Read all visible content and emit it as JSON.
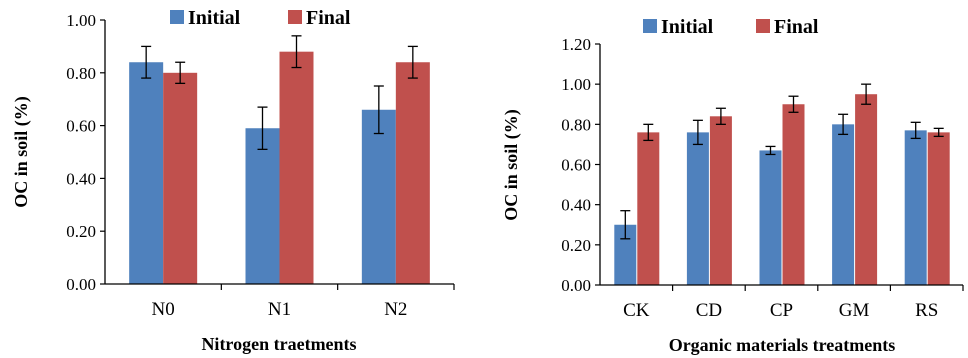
{
  "chart_data": [
    {
      "type": "bar",
      "categories": [
        "N0",
        "N1",
        "N2"
      ],
      "series": [
        {
          "name": "Initial",
          "values": [
            0.84,
            0.59,
            0.66
          ],
          "errors": [
            0.06,
            0.08,
            0.09
          ],
          "color": "#4F81BD"
        },
        {
          "name": "Final",
          "values": [
            0.8,
            0.88,
            0.84
          ],
          "errors": [
            0.04,
            0.06,
            0.06
          ],
          "color": "#C0504D"
        }
      ],
      "title": "",
      "xlabel": "Nitrogen traetments",
      "ylabel": "OC in soil (%)",
      "ylim": [
        0,
        1.0
      ],
      "yticks": [
        "0.00",
        "0.20",
        "0.40",
        "0.60",
        "0.80",
        "1.00"
      ],
      "grid": false,
      "legend_position": "top"
    },
    {
      "type": "bar",
      "categories": [
        "CK",
        "CD",
        "CP",
        "GM",
        "RS"
      ],
      "series": [
        {
          "name": "Initial",
          "values": [
            0.3,
            0.76,
            0.67,
            0.8,
            0.77
          ],
          "errors": [
            0.07,
            0.06,
            0.02,
            0.05,
            0.04
          ],
          "color": "#4F81BD"
        },
        {
          "name": "Final",
          "values": [
            0.76,
            0.84,
            0.9,
            0.95,
            0.76
          ],
          "errors": [
            0.04,
            0.04,
            0.04,
            0.05,
            0.02
          ],
          "color": "#C0504D"
        }
      ],
      "title": "",
      "xlabel": "Organic materials treatments",
      "ylabel": "OC in soil (%)",
      "ylim": [
        0,
        1.2
      ],
      "yticks": [
        "0.00",
        "0.20",
        "0.40",
        "0.60",
        "0.80",
        "1.00",
        "1.20"
      ],
      "grid": false,
      "legend_position": "top"
    }
  ]
}
